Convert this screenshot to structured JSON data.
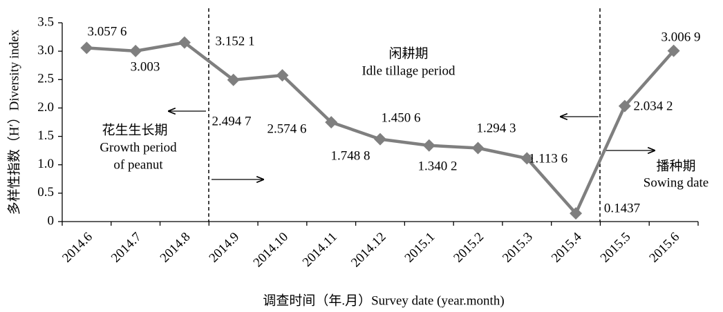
{
  "chart_data": {
    "type": "line",
    "y_label": "多样性指数（H′）Diversity index",
    "x_label": "调查时间（年.月）Survey date (year.month)",
    "categories": [
      "2014.6",
      "2014.7",
      "2014.8",
      "2014.9",
      "2014.10",
      "2014.11",
      "2014.12",
      "2015.1",
      "2015.2",
      "2015.3",
      "2015.4",
      "2015.5",
      "2015.6"
    ],
    "values": [
      3.0576,
      3.003,
      3.1521,
      2.4947,
      2.5746,
      1.7488,
      1.4506,
      1.3402,
      1.2943,
      1.1136,
      0.1437,
      2.0342,
      3.0069
    ],
    "value_labels": [
      "3.057 6",
      "3.003",
      "3.152 1",
      "2.494 7",
      "2.574 6",
      "1.748 8",
      "1.450 6",
      "1.340 2",
      "1.294 3",
      "1.113 6",
      "0.1437",
      "2.034 2",
      "3.006 9"
    ],
    "color": "#7f7f7f",
    "ylim": [
      0,
      3.5
    ],
    "yticks": [
      0,
      0.5,
      {
        "value": 1,
        "label": "1.0"
      },
      1.5,
      {
        "value": 2,
        "label": "2.0"
      },
      2.5,
      {
        "value": 3,
        "label": "3.0"
      },
      3.5
    ],
    "annotations": {
      "idle_cn": "闲耕期",
      "idle_en": "Idle tillage period",
      "growth_cn": "花生生长期",
      "growth_en1": "Growth period",
      "growth_en2": "of peanut",
      "sowing_cn": "播种期",
      "sowing_en": "Sowing date"
    }
  }
}
